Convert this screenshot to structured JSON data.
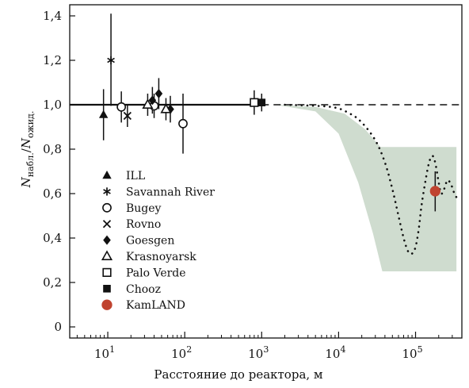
{
  "chart_data": {
    "type": "scatter",
    "xlabel": "Расстояние до реактора, м",
    "ylabel": {
      "main": "N",
      "sub_num": "набл.",
      "slash": "/",
      "main2": "N",
      "sub_den": "ожид."
    },
    "x_scale": "log",
    "xlim": [
      3.2,
      400000
    ],
    "ylim": [
      -0.05,
      1.45
    ],
    "x_ticks": [
      {
        "value": 10,
        "base": "10",
        "exp": "1"
      },
      {
        "value": 100,
        "base": "10",
        "exp": "2"
      },
      {
        "value": 1000,
        "base": "10",
        "exp": "3"
      },
      {
        "value": 10000,
        "base": "10",
        "exp": "4"
      },
      {
        "value": 100000,
        "base": "10",
        "exp": "5"
      }
    ],
    "y_ticks": [
      {
        "value": 0,
        "label": "0"
      },
      {
        "value": 0.2,
        "label": "0,2"
      },
      {
        "value": 0.4,
        "label": "0,4"
      },
      {
        "value": 0.6,
        "label": "0,6"
      },
      {
        "value": 0.8,
        "label": "0,8"
      },
      {
        "value": 1.0,
        "label": "1,0"
      },
      {
        "value": 1.2,
        "label": "1,2"
      },
      {
        "value": 1.4,
        "label": "1,4"
      }
    ],
    "reference_line": {
      "y": 1.0,
      "solid_until_x": 1000
    },
    "band": {
      "color": "#cfdccf",
      "x_start": 1500,
      "x_end": 340000,
      "upper": [
        [
          1500,
          1.0
        ],
        [
          5000,
          0.99
        ],
        [
          12000,
          0.96
        ],
        [
          22000,
          0.89
        ],
        [
          35000,
          0.81
        ],
        [
          340000,
          0.81
        ]
      ],
      "lower": [
        [
          1500,
          1.0
        ],
        [
          5000,
          0.97
        ],
        [
          10000,
          0.87
        ],
        [
          18000,
          0.65
        ],
        [
          28000,
          0.42
        ],
        [
          37000,
          0.25
        ],
        [
          340000,
          0.25
        ]
      ]
    },
    "oscillation_curve": [
      [
        2000,
        1.0
      ],
      [
        8000,
        0.99
      ],
      [
        14000,
        0.96
      ],
      [
        20000,
        0.92
      ],
      [
        30000,
        0.84
      ],
      [
        40000,
        0.74
      ],
      [
        50000,
        0.62
      ],
      [
        60000,
        0.5
      ],
      [
        70000,
        0.4
      ],
      [
        80000,
        0.34
      ],
      [
        90000,
        0.33
      ],
      [
        100000,
        0.36
      ],
      [
        110000,
        0.44
      ],
      [
        120000,
        0.55
      ],
      [
        135000,
        0.66
      ],
      [
        150000,
        0.74
      ],
      [
        165000,
        0.77
      ],
      [
        180000,
        0.74
      ],
      [
        200000,
        0.65
      ],
      [
        215000,
        0.6
      ],
      [
        235000,
        0.62
      ],
      [
        260000,
        0.66
      ],
      [
        290000,
        0.64
      ],
      [
        320000,
        0.6
      ],
      [
        345000,
        0.58
      ]
    ],
    "series": [
      {
        "name": "ILL",
        "marker": "triangle-filled",
        "color": "#111111",
        "points": [
          {
            "x": 8.8,
            "y": 0.955,
            "lo": 0.84,
            "hi": 1.07
          }
        ]
      },
      {
        "name": "Savannah River",
        "marker": "asterisk",
        "color": "#111111",
        "points": [
          {
            "x": 11,
            "y": 1.2,
            "lo": 0.995,
            "hi": 1.41
          }
        ]
      },
      {
        "name": "Bugey",
        "marker": "circle-open",
        "color": "#111111",
        "points": [
          {
            "x": 15,
            "y": 0.99,
            "lo": 0.92,
            "hi": 1.06
          },
          {
            "x": 40,
            "y": 0.995,
            "lo": 0.94,
            "hi": 1.05
          },
          {
            "x": 95,
            "y": 0.915,
            "lo": 0.78,
            "hi": 1.05
          }
        ]
      },
      {
        "name": "Rovno",
        "marker": "x",
        "color": "#111111",
        "points": [
          {
            "x": 18,
            "y": 0.95,
            "lo": 0.9,
            "hi": 1.0
          }
        ]
      },
      {
        "name": "Goesgen",
        "marker": "diamond-filled",
        "color": "#111111",
        "points": [
          {
            "x": 38,
            "y": 1.02,
            "lo": 0.96,
            "hi": 1.08
          },
          {
            "x": 46,
            "y": 1.05,
            "lo": 0.98,
            "hi": 1.12
          },
          {
            "x": 65,
            "y": 0.98,
            "lo": 0.92,
            "hi": 1.04
          }
        ]
      },
      {
        "name": "Krasnoyarsk",
        "marker": "triangle-open",
        "color": "#111111",
        "points": [
          {
            "x": 33,
            "y": 1.0,
            "lo": 0.95,
            "hi": 1.05
          },
          {
            "x": 57,
            "y": 0.98,
            "lo": 0.93,
            "hi": 1.03
          }
        ]
      },
      {
        "name": "Palo Verde",
        "marker": "square-open",
        "color": "#111111",
        "points": [
          {
            "x": 800,
            "y": 1.01,
            "lo": 0.955,
            "hi": 1.065
          }
        ]
      },
      {
        "name": "Chooz",
        "marker": "square-filled",
        "color": "#111111",
        "points": [
          {
            "x": 1000,
            "y": 1.01,
            "lo": 0.97,
            "hi": 1.05
          }
        ]
      },
      {
        "name": "KamLAND",
        "marker": "circle-filled",
        "color": "#c0432f",
        "points": [
          {
            "x": 180000,
            "y": 0.611,
            "lo": 0.52,
            "hi": 0.7
          }
        ]
      }
    ],
    "legend": {
      "placement": "lower-left"
    }
  }
}
